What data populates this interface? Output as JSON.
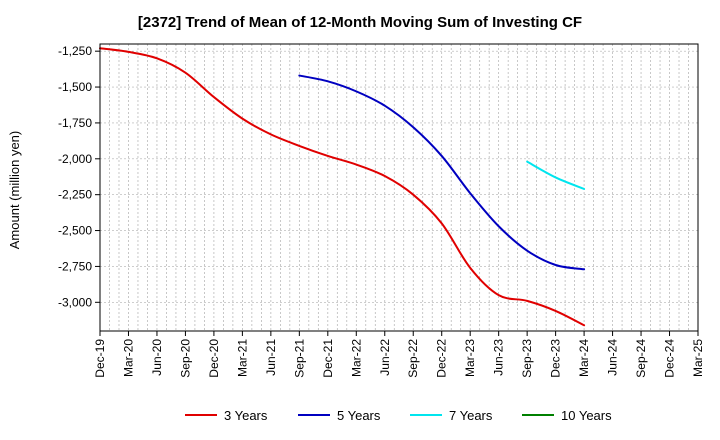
{
  "chart_data": {
    "type": "line",
    "title": "[2372]  Trend of Mean of 12-Month Moving Sum of Investing CF",
    "xlabel": "",
    "ylabel": "Amount (million yen)",
    "ylim": [
      -3200,
      -1200
    ],
    "yticks": [
      -1250,
      -1500,
      -1750,
      -2000,
      -2250,
      -2500,
      -2750,
      -3000
    ],
    "ytick_labels": [
      "-1,250",
      "-1,500",
      "-1,750",
      "-2,000",
      "-2,250",
      "-2,500",
      "-2,750",
      "-3,000"
    ],
    "x_start": "Dec-19",
    "x_end": "Mar-25",
    "x_tick_labels": [
      "Dec-19",
      "Mar-20",
      "Jun-20",
      "Sep-20",
      "Dec-20",
      "Mar-21",
      "Jun-21",
      "Sep-21",
      "Dec-21",
      "Mar-22",
      "Jun-22",
      "Sep-22",
      "Dec-22",
      "Mar-23",
      "Jun-23",
      "Sep-23",
      "Dec-23",
      "Mar-24",
      "Jun-24",
      "Sep-24",
      "Dec-24",
      "Mar-25"
    ],
    "grid": true,
    "legend_position": "bottom",
    "series": [
      {
        "name": "3 Years",
        "color": "#e00000",
        "points": [
          [
            "Dec-19",
            -1230
          ],
          [
            "Mar-20",
            -1255
          ],
          [
            "Jun-20",
            -1300
          ],
          [
            "Sep-20",
            -1400
          ],
          [
            "Dec-20",
            -1570
          ],
          [
            "Mar-21",
            -1720
          ],
          [
            "Jun-21",
            -1830
          ],
          [
            "Sep-21",
            -1910
          ],
          [
            "Dec-21",
            -1980
          ],
          [
            "Mar-22",
            -2040
          ],
          [
            "Jun-22",
            -2120
          ],
          [
            "Sep-22",
            -2250
          ],
          [
            "Dec-22",
            -2450
          ],
          [
            "Mar-23",
            -2760
          ],
          [
            "Jun-23",
            -2950
          ],
          [
            "Sep-23",
            -2990
          ],
          [
            "Dec-23",
            -3060
          ],
          [
            "Mar-24",
            -3160
          ]
        ]
      },
      {
        "name": "5 Years",
        "color": "#0000c0",
        "points": [
          [
            "Sep-21",
            -1420
          ],
          [
            "Dec-21",
            -1460
          ],
          [
            "Mar-22",
            -1530
          ],
          [
            "Jun-22",
            -1630
          ],
          [
            "Sep-22",
            -1780
          ],
          [
            "Dec-22",
            -1980
          ],
          [
            "Mar-23",
            -2240
          ],
          [
            "Jun-23",
            -2470
          ],
          [
            "Sep-23",
            -2640
          ],
          [
            "Dec-23",
            -2740
          ],
          [
            "Mar-24",
            -2770
          ]
        ]
      },
      {
        "name": "7 Years",
        "color": "#00e5ee",
        "points": [
          [
            "Sep-23",
            -2020
          ],
          [
            "Dec-23",
            -2130
          ],
          [
            "Mar-24",
            -2210
          ]
        ]
      },
      {
        "name": "10 Years",
        "color": "#008000",
        "points": []
      }
    ]
  }
}
